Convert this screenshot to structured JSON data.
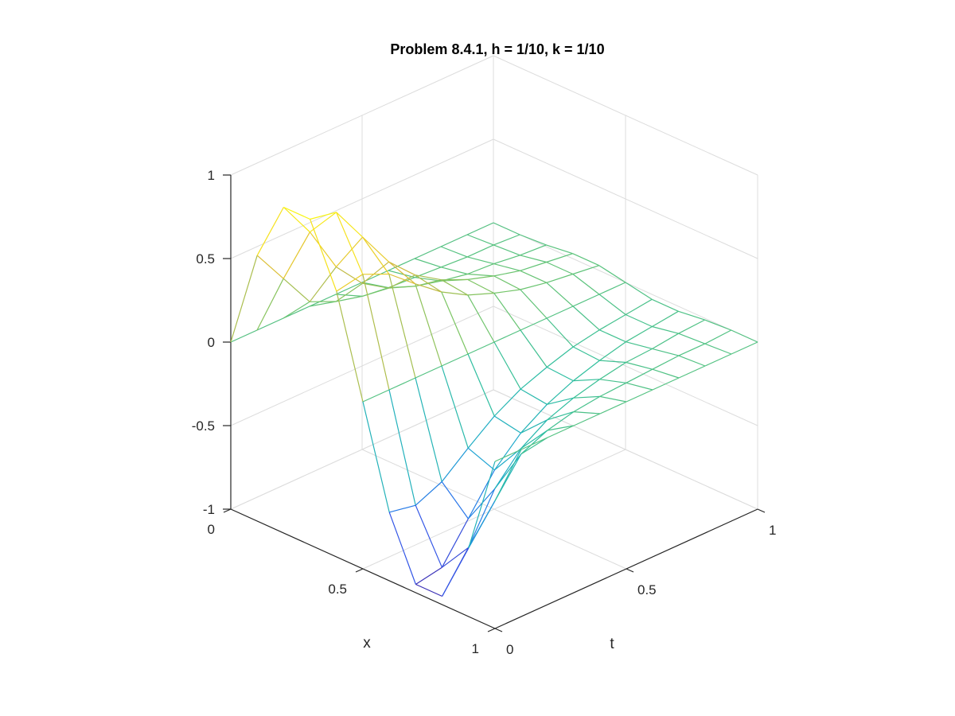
{
  "chart_data": {
    "type": "surface-mesh",
    "title": "Problem 8.4.1, h = 1/10, k = 1/10",
    "xlabel": "x",
    "tlabel": "t",
    "zlabel": "",
    "xlim": [
      0,
      1
    ],
    "tlim": [
      0,
      1
    ],
    "zlim": [
      -1,
      1
    ],
    "x_ticks": [
      "0",
      "0.5",
      "1"
    ],
    "t_ticks": [
      "0",
      "0.5",
      "1"
    ],
    "z_ticks": [
      "-1",
      "-0.5",
      "0",
      "0.5",
      "1"
    ],
    "grid": true,
    "colormap": [
      "#3e26a8",
      "#2f60f5",
      "#1ba7d0",
      "#2ebf9f",
      "#79c564",
      "#d6b83b",
      "#f5db1e",
      "#f9fb0e"
    ],
    "x": [
      0,
      0.1,
      0.2,
      0.3,
      0.4,
      0.5,
      0.6,
      0.7,
      0.8,
      0.9,
      1.0
    ],
    "t": [
      0,
      0.1,
      0.2,
      0.3,
      0.4,
      0.5,
      0.6,
      0.7,
      0.8,
      0.9,
      1.0
    ],
    "z_rows_by_t": [
      [
        0.0,
        0.59,
        0.95,
        0.95,
        0.59,
        0.0,
        -0.59,
        -0.95,
        -0.95,
        -0.59,
        0.0
      ],
      [
        0.0,
        0.38,
        0.73,
        0.92,
        0.62,
        0.0,
        -0.62,
        -0.92,
        -0.73,
        -0.38,
        0.0
      ],
      [
        0.0,
        0.17,
        0.45,
        0.7,
        0.55,
        0.0,
        -0.55,
        -0.7,
        -0.45,
        -0.17,
        0.0
      ],
      [
        0.0,
        0.1,
        0.28,
        0.48,
        0.42,
        0.0,
        -0.42,
        -0.48,
        -0.28,
        -0.1,
        0.0
      ],
      [
        0.0,
        0.06,
        0.18,
        0.33,
        0.3,
        0.0,
        -0.3,
        -0.33,
        -0.18,
        -0.06,
        0.0
      ],
      [
        0.0,
        0.04,
        0.12,
        0.23,
        0.21,
        0.0,
        -0.21,
        -0.23,
        -0.12,
        -0.04,
        0.0
      ],
      [
        0.0,
        0.03,
        0.08,
        0.16,
        0.15,
        0.0,
        -0.15,
        -0.16,
        -0.08,
        -0.03,
        0.0
      ],
      [
        0.0,
        0.02,
        0.05,
        0.11,
        0.1,
        0.0,
        -0.1,
        -0.11,
        -0.05,
        -0.02,
        0.0
      ],
      [
        0.0,
        0.01,
        0.04,
        0.07,
        0.07,
        0.0,
        -0.07,
        -0.07,
        -0.04,
        -0.01,
        0.0
      ],
      [
        0.0,
        0.01,
        0.02,
        0.05,
        0.05,
        0.0,
        -0.05,
        -0.05,
        -0.02,
        -0.01,
        0.0
      ],
      [
        0.0,
        0.0,
        0.01,
        0.03,
        0.03,
        0.0,
        -0.03,
        -0.03,
        -0.01,
        0.0,
        0.0
      ]
    ]
  }
}
